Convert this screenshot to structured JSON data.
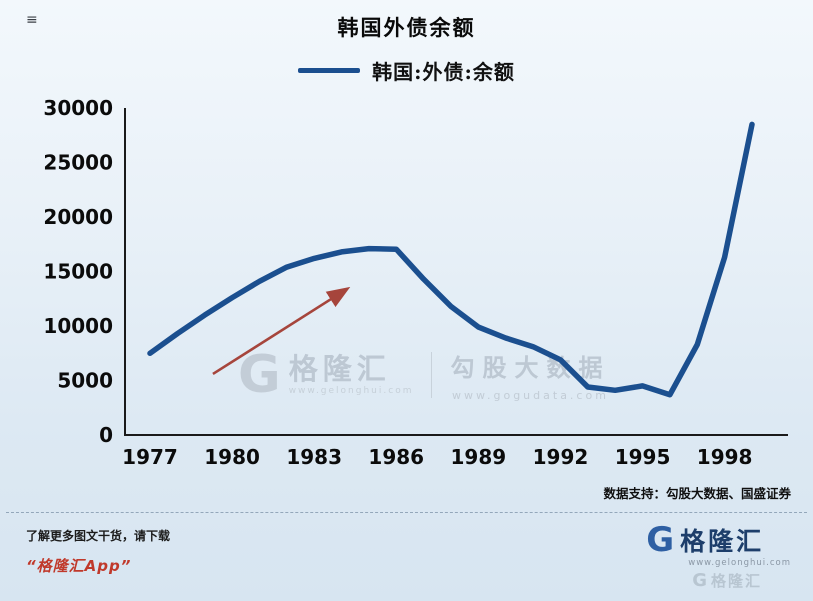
{
  "page": {
    "menu_mark": "≡"
  },
  "chart_data": {
    "type": "line",
    "title": "韩国外债余额",
    "grid": false,
    "legend_position": "top",
    "x": [
      1977,
      1978,
      1979,
      1980,
      1981,
      1982,
      1983,
      1984,
      1985,
      1986,
      1987,
      1988,
      1989,
      1990,
      1991,
      1992,
      1993,
      1994,
      1995,
      1996,
      1997,
      1998,
      1999
    ],
    "series": [
      {
        "name": "韩国:外债:余额",
        "color": "#1b4f8f",
        "values": [
          7500,
          9300,
          11000,
          12600,
          14100,
          15400,
          16200,
          16800,
          17100,
          17050,
          14300,
          11800,
          9900,
          8900,
          8100,
          6900,
          4400,
          4100,
          4500,
          3700,
          8300,
          16300,
          28500
        ]
      }
    ],
    "xlabel": "",
    "ylabel": "",
    "ylim": [
      0,
      30000
    ],
    "yticks": [
      0,
      5000,
      10000,
      15000,
      20000,
      25000,
      30000
    ],
    "xticks": [
      1977,
      1980,
      1983,
      1986,
      1989,
      1992,
      1995,
      1998
    ],
    "annotation_arrow": {
      "from_x": 1979.3,
      "from_y": 5600,
      "to_x": 1984.2,
      "to_y": 13400,
      "color": "#a6453c"
    }
  },
  "watermark": {
    "logo_letter": "G",
    "logo_text": "格隆汇",
    "logo_url": "www.gelonghui.com",
    "right_text": "勾股大数据",
    "right_url": "www.gogudata.com"
  },
  "source_note": "数据支持：勾股大数据、国盛证券",
  "footer": {
    "promo_line1": "了解更多图文干货，请下载",
    "promo_line2": "“格隆汇App”",
    "logo_letter": "G",
    "logo_text": "格隆汇",
    "logo_url": "www.gelonghui.com"
  },
  "colors": {
    "line_blue": "#1b4f8f",
    "arrow_red": "#a6453c",
    "app_red": "#c0392b",
    "brand_blue": "#2e5fa3",
    "brand_navy": "#1d3e6b",
    "axis_black": "#1a1a1a",
    "watermark_gray": "#bcc7d2"
  }
}
